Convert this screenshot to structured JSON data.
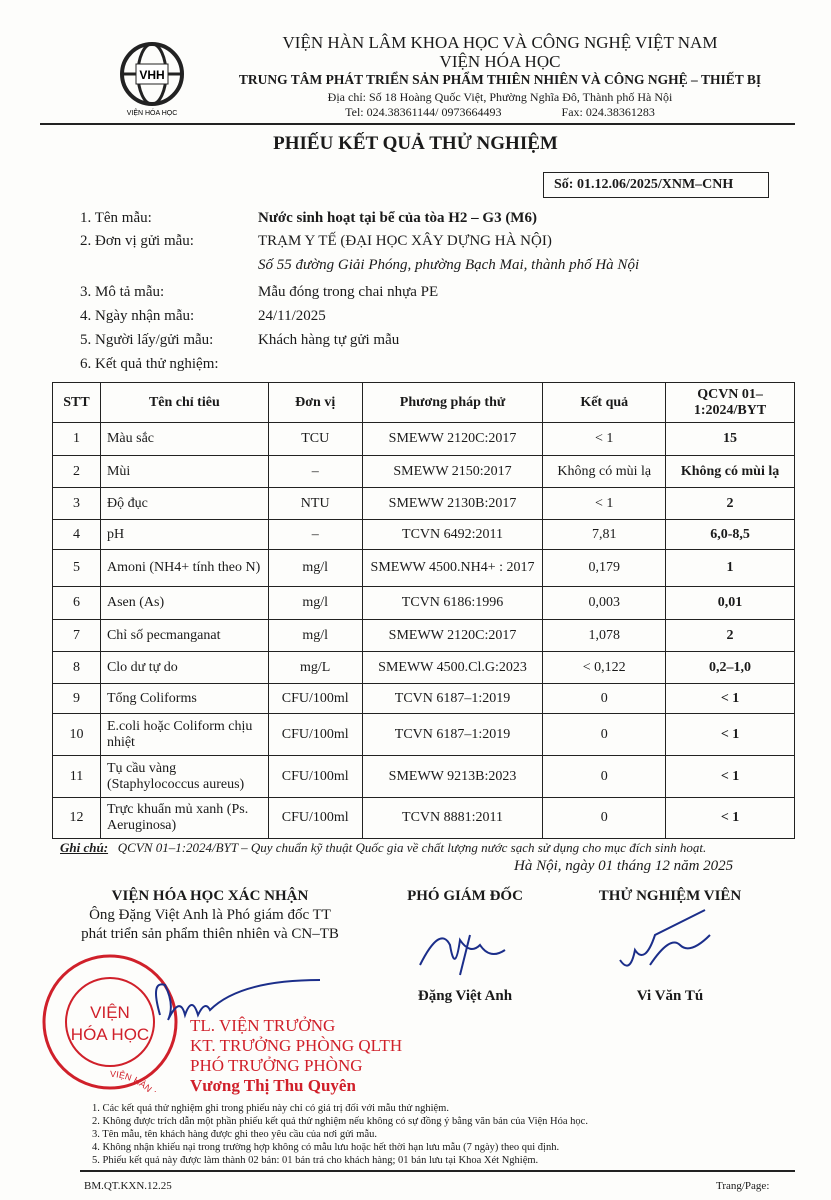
{
  "header": {
    "logo_text": "VHH",
    "logo_caption": "VIỆN HÓA HỌC",
    "line1": "VIỆN HÀN LÂM KHOA HỌC VÀ CÔNG NGHỆ VIỆT NAM",
    "line2": "VIỆN HÓA HỌC",
    "line3": "TRUNG TÂM PHÁT TRIỂN SẢN PHẨM THIÊN NHIÊN VÀ CÔNG NGHỆ – THIẾT BỊ",
    "address": "Địa chỉ: Số 18 Hoàng Quốc Việt, Phường Nghĩa Đô, Thành phố Hà Nội",
    "tel": "Tel: 024.38361144/ 0973664493",
    "fax": "Fax: 024.38361283"
  },
  "title": "PHIẾU KẾT QUẢ THỬ NGHIỆM",
  "doc_no": "Số: 01.12.06/2025/XNM–CNH",
  "info": [
    {
      "label": "1. Tên mẫu:",
      "value": "Nước sinh hoạt tại bể của tòa H2 – G3 (M6)"
    },
    {
      "label": "2. Đơn vị gửi mẫu:",
      "value": "TRẠM Y TẾ (ĐẠI HỌC XÂY DỰNG HÀ NỘI)",
      "value2": "Số 55 đường Giải Phóng, phường Bạch Mai, thành phố Hà Nội"
    },
    {
      "label": "3. Mô tả mẫu:",
      "value": "Mẫu đóng trong chai nhựa PE"
    },
    {
      "label": "4. Ngày nhận mẫu:",
      "value": "24/11/2025"
    },
    {
      "label": "5. Người lấy/gửi mẫu:",
      "value": "Khách hàng tự gửi mẫu"
    },
    {
      "label": "6. Kết quả thử nghiệm:"
    }
  ],
  "table": {
    "headers": [
      "STT",
      "Tên chỉ tiêu",
      "Đơn vị",
      "Phương pháp thử",
      "Kết quả",
      "QCVN 01–1:2024/BYT"
    ],
    "rows": [
      [
        "1",
        "Màu sắc",
        "TCU",
        "SMEWW 2120C:2017",
        "< 1",
        "15"
      ],
      [
        "2",
        "Mùi",
        "–",
        "SMEWW 2150:2017",
        "Không có mùi lạ",
        "Không có mùi lạ"
      ],
      [
        "3",
        "Độ đục",
        "NTU",
        "SMEWW 2130B:2017",
        "< 1",
        "2"
      ],
      [
        "4",
        "pH",
        "–",
        "TCVN 6492:2011",
        "7,81",
        "6,0-8,5"
      ],
      [
        "5",
        "Amoni (NH4+ tính theo N)",
        "mg/l",
        "SMEWW 4500.NH4+ : 2017",
        "0,179",
        "1"
      ],
      [
        "6",
        "Asen (As)",
        "mg/l",
        "TCVN 6186:1996",
        "0,003",
        "0,01"
      ],
      [
        "7",
        "Chỉ số pecmanganat",
        "mg/l",
        "SMEWW 2120C:2017",
        "1,078",
        "2"
      ],
      [
        "8",
        "Clo dư tự do",
        "mg/L",
        "SMEWW 4500.Cl.G:2023",
        "< 0,122",
        "0,2–1,0"
      ],
      [
        "9",
        "Tổng Coliforms",
        "CFU/100ml",
        "TCVN 6187–1:2019",
        "0",
        "< 1"
      ],
      [
        "10",
        "E.coli hoặc Coliform chịu nhiệt",
        "CFU/100ml",
        "TCVN 6187–1:2019",
        "0",
        "< 1"
      ],
      [
        "11",
        "Tụ cầu vàng (Staphylococcus aureus)",
        "CFU/100ml",
        "SMEWW 9213B:2023",
        "0",
        "< 1"
      ],
      [
        "12",
        "Trực khuẩn mủ xanh (Ps. Aeruginosa)",
        "CFU/100ml",
        "TCVN 8881:2011",
        "0",
        "< 1"
      ]
    ]
  },
  "note": {
    "label": "Ghi chú:",
    "text": "QCVN 01–1:2024/BYT – Quy chuẩn kỹ thuật Quốc gia về chất lượng nước sạch sử dụng cho mục đích sinh hoạt."
  },
  "date": "Hà Nội, ngày 01 tháng 12 năm 2025",
  "sign": {
    "confirm_title": "VIỆN HÓA HỌC XÁC NHẬN",
    "confirm_l1": "Ông Đặng Việt Anh là Phó giám đốc TT",
    "confirm_l2": "phát triển sản phẩm thiên nhiên và CN–TB",
    "deputy_title": "PHÓ GIÁM ĐỐC",
    "deputy_name": "Đặng Việt Anh",
    "tester_title": "THỬ NGHIỆM VIÊN",
    "tester_name": "Vi Văn Tú",
    "stamp_outer": "VIỆN HÀN LÂM KHOA HỌC VÀ CÔNG NGHỆ VIỆT NAM",
    "stamp_inner1": "VIỆN",
    "stamp_inner2": "HÓA HỌC",
    "red1": "TL. VIỆN TRƯỞNG",
    "red2": "KT. TRƯỞNG PHÒNG QLTH",
    "red3": "PHÓ TRƯỞNG PHÒNG",
    "red4": "Vương Thị Thu Quyên"
  },
  "footnotes": [
    "1. Các kết quả thử nghiệm ghi trong phiếu này chỉ có giá trị đối với mẫu thử nghiệm.",
    "2. Không được trích dẫn một phần phiếu kết quả thử nghiệm nếu không có sự đồng ý bằng văn bản của Viện Hóa học.",
    "3. Tên mẫu, tên khách hàng được ghi theo yêu cầu của nơi gửi mẫu.",
    "4. Không nhận khiếu nại trong trường hợp không có mẫu lưu hoặc hết thời hạn lưu mẫu (7 ngày) theo qui định.",
    "5. Phiếu kết quả này được làm thành 02 bản: 01 bản trả cho khách hàng; 01 bản lưu tại Khoa Xét Nghiệm."
  ],
  "form_code": "BM.QT.KXN.12.25",
  "page_label": "Trang/Page:"
}
